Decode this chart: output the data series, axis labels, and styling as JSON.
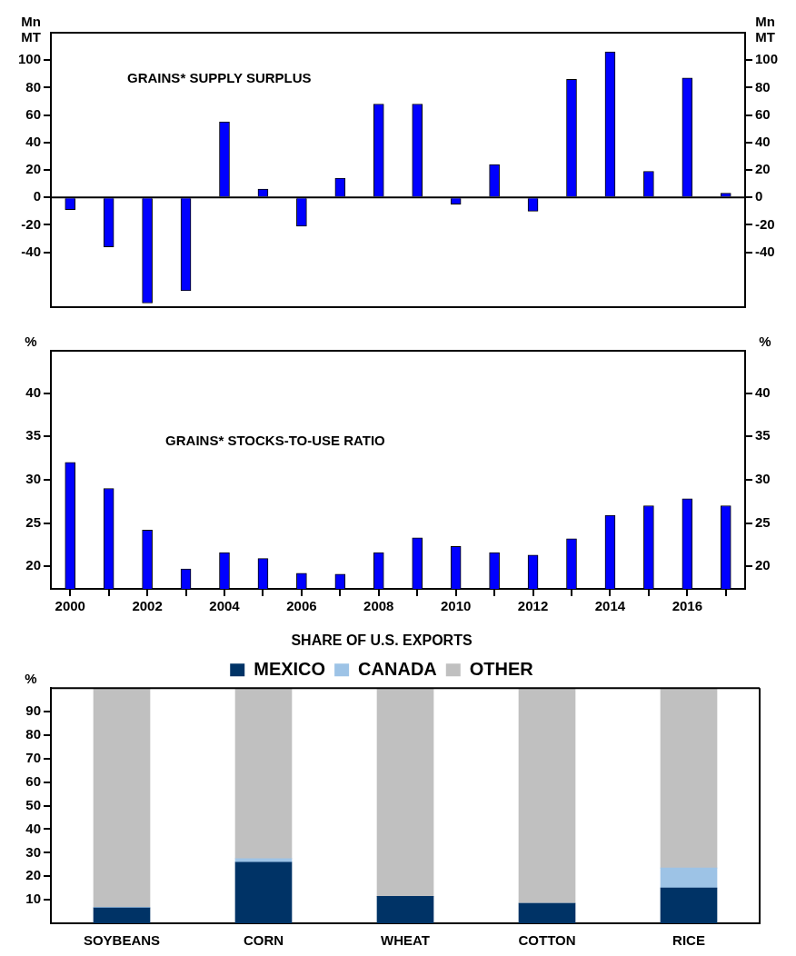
{
  "chart_data": [
    {
      "type": "bar",
      "title": "GRAINS* SUPPLY SURPLUS",
      "ylabel": "Mn MT",
      "y2label": "Mn MT",
      "x": [
        2000,
        2001,
        2002,
        2003,
        2004,
        2005,
        2006,
        2007,
        2008,
        2009,
        2010,
        2011,
        2012,
        2013,
        2014,
        2015,
        2016,
        2017
      ],
      "series": [
        {
          "color": "#0000ff",
          "values": [
            -9,
            -36,
            -77,
            -68,
            55,
            6,
            -21,
            14,
            68,
            68,
            -5,
            24,
            -10,
            86,
            106,
            19,
            87,
            3
          ]
        }
      ],
      "xlim": [
        1999.5,
        2017.5
      ],
      "ylim": [
        -80,
        120
      ],
      "yticks": [
        -40,
        -20,
        0,
        20,
        40,
        60,
        80,
        100
      ],
      "y2lim": [
        -80,
        120
      ],
      "y2ticks": [
        -40,
        -20,
        0,
        20,
        40,
        60,
        80,
        100
      ],
      "tick_labels": "y",
      "grid": false,
      "ref_lines": [
        {
          "axis": "y",
          "value": 0,
          "color": "#000000"
        }
      ]
    },
    {
      "type": "bar",
      "title": "GRAINS* STOCKS-TO-USE RATIO",
      "ylabel": "%",
      "y2label": "%",
      "x": [
        2000,
        2001,
        2002,
        2003,
        2004,
        2005,
        2006,
        2007,
        2008,
        2009,
        2010,
        2011,
        2012,
        2013,
        2014,
        2015,
        2016,
        2017
      ],
      "series": [
        {
          "color": "#0000ff",
          "values": [
            32,
            29,
            24.2,
            19.7,
            21.6,
            20.9,
            19.2,
            19.1,
            21.6,
            23.3,
            22.3,
            21.6,
            21.3,
            23.2,
            25.9,
            27,
            27.8,
            27
          ]
        }
      ],
      "xlim": [
        1999.5,
        2017.5
      ],
      "xticks": [
        2000,
        {
          "value": 2001,
          "label": null
        },
        2002,
        {
          "value": 2003,
          "label": null
        },
        2004,
        {
          "value": 2005,
          "label": null
        },
        2006,
        {
          "value": 2007,
          "label": null
        },
        2008,
        {
          "value": 2009,
          "label": null
        },
        2010,
        {
          "value": 2011,
          "label": null
        },
        2012,
        {
          "value": 2013,
          "label": null
        },
        2014,
        {
          "value": 2015,
          "label": null
        },
        2016,
        {
          "value": 2017,
          "label": null
        }
      ],
      "ylim": [
        17.4,
        44.9
      ],
      "yticks": [
        20,
        25,
        30,
        35,
        40
      ],
      "y2lim": [
        17.4,
        44.9
      ],
      "y2ticks": [
        20,
        25,
        30,
        35,
        40
      ],
      "grid": false
    },
    {
      "type": "bar",
      "title": "SHARE OF U.S. EXPORTS",
      "ylabel": "%",
      "categories": [
        "SOYBEANS",
        "CORN",
        "WHEAT",
        "COTTON",
        "RICE"
      ],
      "stacked": true,
      "series": [
        {
          "name": "MEXICO",
          "color": "#003366",
          "values": [
            6.5,
            26,
            11.5,
            8.5,
            15
          ]
        },
        {
          "name": "CANADA",
          "color": "#9dc3e6",
          "values": [
            0.3,
            1.5,
            0,
            0,
            8.5
          ]
        },
        {
          "name": "OTHER",
          "color": "#c0c0c0",
          "values": [
            93.2,
            72.5,
            88.5,
            91.5,
            76.5
          ]
        }
      ],
      "ylim": [
        0,
        100
      ],
      "yticks": [
        10,
        20,
        30,
        40,
        50,
        60,
        70,
        80,
        90
      ],
      "legend": "top",
      "grid": false
    }
  ]
}
